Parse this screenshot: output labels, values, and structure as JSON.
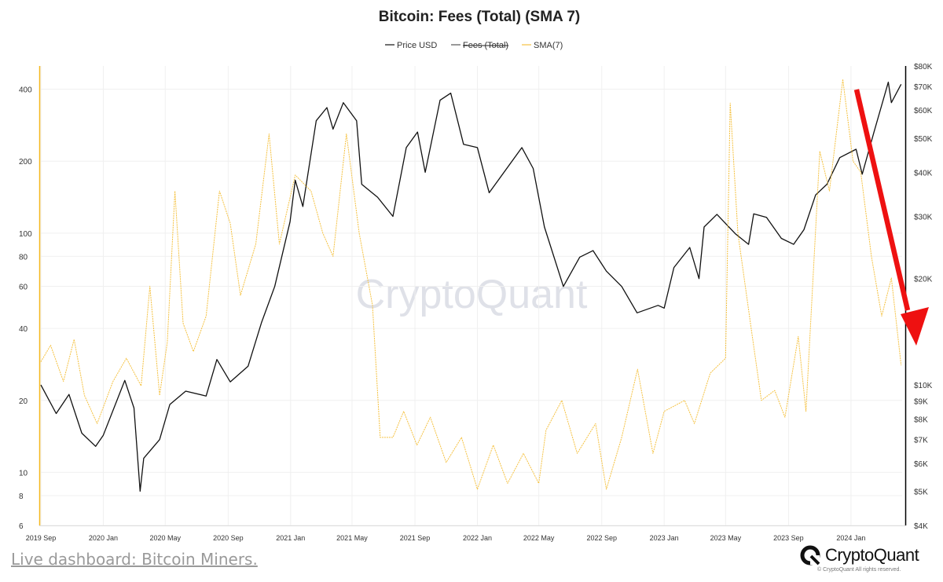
{
  "page": {
    "watermark": "CryptoQuant",
    "footer_link": "Live dashboard: Bitcoin Miners.",
    "brand_name": "CryptoQuant",
    "copyright": "© CryptoQuant All rights reserved."
  },
  "colors": {
    "price": "#111111",
    "fees": "#555555",
    "sma": "#f5c242",
    "left_axis": "#f5b81f",
    "right_axis": "#000000",
    "arrow": "#ee1111",
    "grid": "#f0f0f0"
  },
  "chart_data": {
    "type": "line",
    "title": "Bitcoin: Fees (Total) (SMA 7)",
    "legend": [
      {
        "name": "Price USD",
        "color": "#111111",
        "struck": false
      },
      {
        "name": "Fees (Total)",
        "color": "#555555",
        "struck": true
      },
      {
        "name": "SMA(7)",
        "color": "#f5c242",
        "struck": false
      }
    ],
    "legend_position": "top-center",
    "grid": true,
    "x_start": "2019-09-01",
    "x_end": "2024-04-10",
    "x_ticks": [
      "2019 Sep",
      "2020 Jan",
      "2020 May",
      "2020 Sep",
      "2021 Jan",
      "2021 May",
      "2021 Sep",
      "2022 Jan",
      "2022 May",
      "2022 Sep",
      "2023 Jan",
      "2023 May",
      "2023 Sep",
      "2024 Jan"
    ],
    "left_axis": {
      "scale": "log",
      "ylim": [
        6,
        500
      ],
      "ticks": [
        6,
        8,
        10,
        20,
        40,
        60,
        80,
        100,
        200,
        400
      ],
      "tick_labels": [
        "6",
        "8",
        "10",
        "20",
        "40",
        "60",
        "80",
        "100",
        "200",
        "400"
      ]
    },
    "right_axis": {
      "scale": "log",
      "ylim": [
        4000,
        80000
      ],
      "ticks": [
        4000,
        5000,
        6000,
        7000,
        8000,
        9000,
        10000,
        20000,
        30000,
        40000,
        50000,
        60000,
        70000,
        80000
      ],
      "tick_labels": [
        "$4K",
        "$5K",
        "$6K",
        "$7K",
        "$8K",
        "$9K",
        "$10K",
        "$20K",
        "$30K",
        "$40K",
        "$50K",
        "$60K",
        "$70K",
        "$80K"
      ]
    },
    "series": [
      {
        "name": "Price USD",
        "axis": "right",
        "points": [
          [
            "2019-09-01",
            10000
          ],
          [
            "2019-10-01",
            8300
          ],
          [
            "2019-10-26",
            9400
          ],
          [
            "2019-11-20",
            7300
          ],
          [
            "2019-12-17",
            6700
          ],
          [
            "2020-01-01",
            7200
          ],
          [
            "2020-02-12",
            10300
          ],
          [
            "2020-03-01",
            8600
          ],
          [
            "2020-03-13",
            5000
          ],
          [
            "2020-03-20",
            6200
          ],
          [
            "2020-04-20",
            7000
          ],
          [
            "2020-05-10",
            8800
          ],
          [
            "2020-06-10",
            9600
          ],
          [
            "2020-07-20",
            9300
          ],
          [
            "2020-08-10",
            11800
          ],
          [
            "2020-09-05",
            10200
          ],
          [
            "2020-10-10",
            11300
          ],
          [
            "2020-11-05",
            15000
          ],
          [
            "2020-12-01",
            19000
          ],
          [
            "2020-12-31",
            29000
          ],
          [
            "2021-01-10",
            38000
          ],
          [
            "2021-01-25",
            32000
          ],
          [
            "2021-02-20",
            56000
          ],
          [
            "2021-03-13",
            61000
          ],
          [
            "2021-03-25",
            53000
          ],
          [
            "2021-04-14",
            63000
          ],
          [
            "2021-05-10",
            56000
          ],
          [
            "2021-05-20",
            37000
          ],
          [
            "2021-06-20",
            34000
          ],
          [
            "2021-07-20",
            30000
          ],
          [
            "2021-08-15",
            47000
          ],
          [
            "2021-09-06",
            52000
          ],
          [
            "2021-09-21",
            40000
          ],
          [
            "2021-10-20",
            64000
          ],
          [
            "2021-11-10",
            67000
          ],
          [
            "2021-12-05",
            48000
          ],
          [
            "2022-01-01",
            47000
          ],
          [
            "2022-01-24",
            35000
          ],
          [
            "2022-03-29",
            47000
          ],
          [
            "2022-04-20",
            41000
          ],
          [
            "2022-05-12",
            28000
          ],
          [
            "2022-06-18",
            19000
          ],
          [
            "2022-07-20",
            23000
          ],
          [
            "2022-08-15",
            24000
          ],
          [
            "2022-09-10",
            21000
          ],
          [
            "2022-10-10",
            19000
          ],
          [
            "2022-11-09",
            16000
          ],
          [
            "2022-12-20",
            16800
          ],
          [
            "2023-01-01",
            16500
          ],
          [
            "2023-01-20",
            21500
          ],
          [
            "2023-02-20",
            24500
          ],
          [
            "2023-03-10",
            20000
          ],
          [
            "2023-03-20",
            28000
          ],
          [
            "2023-04-14",
            30400
          ],
          [
            "2023-05-20",
            26800
          ],
          [
            "2023-06-15",
            25000
          ],
          [
            "2023-06-25",
            30500
          ],
          [
            "2023-07-20",
            29800
          ],
          [
            "2023-08-18",
            26000
          ],
          [
            "2023-09-11",
            25000
          ],
          [
            "2023-10-01",
            27500
          ],
          [
            "2023-10-24",
            34500
          ],
          [
            "2023-11-15",
            37000
          ],
          [
            "2023-12-10",
            44000
          ],
          [
            "2024-01-11",
            46500
          ],
          [
            "2024-01-23",
            39500
          ],
          [
            "2024-02-15",
            52000
          ],
          [
            "2024-03-14",
            72000
          ],
          [
            "2024-03-20",
            63000
          ],
          [
            "2024-04-08",
            71000
          ]
        ]
      },
      {
        "name": "SMA(7)",
        "axis": "left",
        "points": [
          [
            "2019-09-01",
            29
          ],
          [
            "2019-09-20",
            34
          ],
          [
            "2019-10-15",
            24
          ],
          [
            "2019-11-05",
            36
          ],
          [
            "2019-11-25",
            21
          ],
          [
            "2019-12-20",
            16
          ],
          [
            "2020-01-20",
            24
          ],
          [
            "2020-02-15",
            30
          ],
          [
            "2020-03-15",
            23
          ],
          [
            "2020-04-01",
            60
          ],
          [
            "2020-04-20",
            21
          ],
          [
            "2020-05-05",
            35
          ],
          [
            "2020-05-20",
            150
          ],
          [
            "2020-06-05",
            42
          ],
          [
            "2020-06-25",
            32
          ],
          [
            "2020-07-20",
            45
          ],
          [
            "2020-08-15",
            150
          ],
          [
            "2020-09-05",
            110
          ],
          [
            "2020-09-25",
            55
          ],
          [
            "2020-10-25",
            90
          ],
          [
            "2020-11-20",
            260
          ],
          [
            "2020-12-10",
            90
          ],
          [
            "2021-01-10",
            175
          ],
          [
            "2021-02-10",
            150
          ],
          [
            "2021-03-05",
            100
          ],
          [
            "2021-03-25",
            80
          ],
          [
            "2021-04-20",
            260
          ],
          [
            "2021-05-15",
            100
          ],
          [
            "2021-06-10",
            50
          ],
          [
            "2021-06-25",
            14
          ],
          [
            "2021-07-20",
            14
          ],
          [
            "2021-08-10",
            18
          ],
          [
            "2021-09-05",
            13
          ],
          [
            "2021-10-01",
            17
          ],
          [
            "2021-11-01",
            11
          ],
          [
            "2021-12-01",
            14
          ],
          [
            "2022-01-01",
            8.5
          ],
          [
            "2022-02-01",
            13
          ],
          [
            "2022-03-01",
            9
          ],
          [
            "2022-04-01",
            12
          ],
          [
            "2022-05-01",
            9
          ],
          [
            "2022-05-15",
            15
          ],
          [
            "2022-06-15",
            20
          ],
          [
            "2022-07-15",
            12
          ],
          [
            "2022-08-20",
            16
          ],
          [
            "2022-09-10",
            8.5
          ],
          [
            "2022-10-10",
            14
          ],
          [
            "2022-11-10",
            27
          ],
          [
            "2022-12-10",
            12
          ],
          [
            "2023-01-01",
            18
          ],
          [
            "2023-02-10",
            20
          ],
          [
            "2023-03-01",
            16
          ],
          [
            "2023-04-01",
            26
          ],
          [
            "2023-05-01",
            30
          ],
          [
            "2023-05-10",
            350
          ],
          [
            "2023-05-25",
            100
          ],
          [
            "2023-06-20",
            40
          ],
          [
            "2023-07-10",
            20
          ],
          [
            "2023-08-05",
            22
          ],
          [
            "2023-08-25",
            17
          ],
          [
            "2023-09-20",
            37
          ],
          [
            "2023-10-05",
            18
          ],
          [
            "2023-11-01",
            220
          ],
          [
            "2023-11-20",
            150
          ],
          [
            "2023-12-16",
            440
          ],
          [
            "2024-01-05",
            200
          ],
          [
            "2024-01-20",
            180
          ],
          [
            "2024-02-10",
            80
          ],
          [
            "2024-03-01",
            45
          ],
          [
            "2024-03-20",
            65
          ],
          [
            "2024-04-08",
            28
          ]
        ]
      }
    ]
  }
}
